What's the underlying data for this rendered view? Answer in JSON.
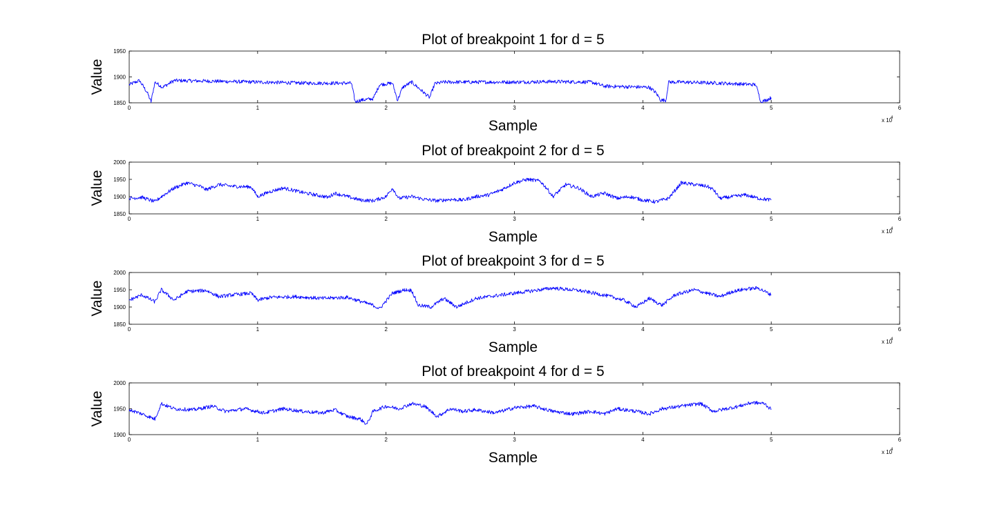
{
  "chart_data": [
    {
      "type": "line",
      "title": "Plot of breakpoint 1 for d = 5",
      "xlabel": "Sample",
      "ylabel": "Value",
      "xlim": [
        0,
        60000
      ],
      "ylim": [
        1850,
        1950
      ],
      "x_ticks": [
        "0",
        "1",
        "2",
        "3",
        "4",
        "5",
        "6"
      ],
      "x_multiplier": "x 10",
      "x_exponent": "4",
      "y_ticks": [
        "1850",
        "1900",
        "1950"
      ],
      "grid": false,
      "color": "#0000ff",
      "series": [
        {
          "x": [
            0,
            800,
            1400,
            1700,
            2000,
            2600,
            3500,
            6000,
            10000,
            14000,
            17300,
            17600,
            18000,
            19000,
            19500,
            20500,
            20900,
            21300,
            22000,
            23400,
            23800,
            24500,
            27000,
            30000,
            33000,
            36000,
            37000,
            40500,
            41000,
            41400,
            41800,
            42000,
            43000,
            46000,
            48800,
            49200,
            49600,
            50000
          ],
          "y": [
            1885,
            1893,
            1870,
            1852,
            1890,
            1880,
            1893,
            1892,
            1890,
            1888,
            1888,
            1852,
            1855,
            1858,
            1885,
            1888,
            1855,
            1880,
            1890,
            1860,
            1887,
            1890,
            1890,
            1890,
            1891,
            1890,
            1882,
            1880,
            1870,
            1855,
            1855,
            1890,
            1890,
            1888,
            1885,
            1852,
            1855,
            1860
          ]
        }
      ]
    },
    {
      "type": "line",
      "title": "Plot of breakpoint 2 for d = 5",
      "xlabel": "Sample",
      "ylabel": "Value",
      "xlim": [
        0,
        60000
      ],
      "ylim": [
        1850,
        2000
      ],
      "x_ticks": [
        "0",
        "1",
        "2",
        "3",
        "4",
        "5",
        "6"
      ],
      "x_multiplier": "x 10",
      "x_exponent": "4",
      "y_ticks": [
        "1850",
        "1900",
        "1950",
        "2000"
      ],
      "grid": false,
      "color": "#0000ff",
      "series": [
        {
          "x": [
            0,
            1000,
            2000,
            2500,
            3500,
            4500,
            5500,
            6000,
            7000,
            8000,
            9500,
            10000,
            11000,
            12000,
            13500,
            14500,
            15500,
            16000,
            17000,
            18000,
            19000,
            20000,
            20500,
            21000,
            22000,
            23000,
            24000,
            25000,
            26000,
            27000,
            28000,
            29000,
            30000,
            31000,
            32000,
            32500,
            33000,
            34000,
            35000,
            36000,
            37000,
            38000,
            39000,
            40000,
            41000,
            42000,
            43000,
            44000,
            45000,
            45500,
            46000,
            47000,
            48000,
            49000,
            50000
          ],
          "y": [
            1895,
            1898,
            1885,
            1900,
            1925,
            1940,
            1930,
            1920,
            1935,
            1930,
            1928,
            1900,
            1915,
            1925,
            1912,
            1905,
            1898,
            1910,
            1900,
            1890,
            1888,
            1900,
            1925,
            1895,
            1900,
            1892,
            1888,
            1892,
            1890,
            1900,
            1905,
            1920,
            1940,
            1950,
            1945,
            1925,
            1900,
            1935,
            1925,
            1900,
            1910,
            1895,
            1900,
            1890,
            1885,
            1895,
            1940,
            1935,
            1930,
            1920,
            1895,
            1900,
            1905,
            1895,
            1890
          ]
        }
      ]
    },
    {
      "type": "line",
      "title": "Plot of breakpoint 3 for d = 5",
      "xlabel": "Sample",
      "ylabel": "Value",
      "xlim": [
        0,
        60000
      ],
      "ylim": [
        1850,
        2000
      ],
      "x_ticks": [
        "0",
        "1",
        "2",
        "3",
        "4",
        "5",
        "6"
      ],
      "x_multiplier": "x 10",
      "x_exponent": "4",
      "y_ticks": [
        "1850",
        "1900",
        "1950",
        "2000"
      ],
      "grid": false,
      "color": "#0000ff",
      "series": [
        {
          "x": [
            0,
            1000,
            2000,
            2500,
            3500,
            4500,
            6000,
            7000,
            8000,
            9500,
            10000,
            11000,
            13000,
            15000,
            17000,
            19000,
            19500,
            20500,
            21500,
            22000,
            22500,
            23500,
            24500,
            25500,
            27000,
            29000,
            31000,
            33000,
            35000,
            36500,
            37500,
            38500,
            39500,
            40500,
            41500,
            42500,
            44000,
            46000,
            47000,
            48000,
            49000,
            50000
          ],
          "y": [
            1920,
            1935,
            1915,
            1950,
            1920,
            1945,
            1948,
            1930,
            1935,
            1940,
            1920,
            1928,
            1930,
            1925,
            1928,
            1905,
            1895,
            1940,
            1950,
            1948,
            1905,
            1900,
            1925,
            1900,
            1925,
            1935,
            1945,
            1955,
            1948,
            1938,
            1930,
            1920,
            1900,
            1925,
            1905,
            1935,
            1950,
            1930,
            1945,
            1952,
            1955,
            1935
          ]
        }
      ]
    },
    {
      "type": "line",
      "title": "Plot of breakpoint 4 for d = 5",
      "xlabel": "Sample",
      "ylabel": "Value",
      "xlim": [
        0,
        60000
      ],
      "ylim": [
        1900,
        2000
      ],
      "x_ticks": [
        "0",
        "1",
        "2",
        "3",
        "4",
        "5",
        "6"
      ],
      "x_multiplier": "x 10",
      "x_exponent": "4",
      "y_ticks": [
        "1900",
        "1950",
        "2000"
      ],
      "grid": false,
      "color": "#0000ff",
      "series": [
        {
          "x": [
            0,
            1000,
            2000,
            2500,
            3500,
            5000,
            6500,
            7500,
            9000,
            10500,
            12000,
            13500,
            15000,
            16000,
            17000,
            18000,
            18500,
            19000,
            20000,
            21000,
            22000,
            23000,
            24000,
            25000,
            26000,
            27000,
            28500,
            30000,
            31500,
            33000,
            34500,
            36000,
            37000,
            38000,
            39500,
            40500,
            41500,
            43000,
            44500,
            45500,
            46500,
            47500,
            48500,
            49500,
            50000
          ],
          "y": [
            1948,
            1940,
            1930,
            1960,
            1950,
            1948,
            1955,
            1945,
            1950,
            1942,
            1950,
            1945,
            1942,
            1948,
            1935,
            1930,
            1920,
            1945,
            1955,
            1950,
            1960,
            1955,
            1935,
            1950,
            1945,
            1948,
            1942,
            1952,
            1955,
            1945,
            1940,
            1945,
            1940,
            1950,
            1945,
            1940,
            1950,
            1955,
            1960,
            1945,
            1950,
            1955,
            1962,
            1960,
            1948
          ]
        }
      ]
    }
  ]
}
